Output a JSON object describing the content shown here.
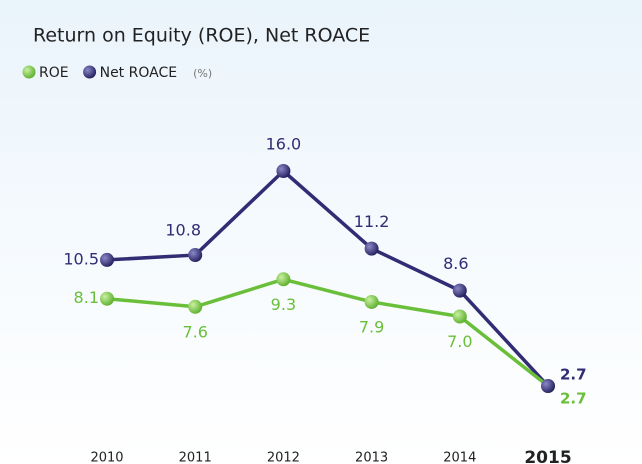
{
  "chart_data": {
    "type": "line",
    "title": "Return on Equity (ROE), Net ROACE",
    "unit": "(%)",
    "categories": [
      "2010",
      "2011",
      "2012",
      "2013",
      "2014",
      "2015"
    ],
    "series": [
      {
        "name": "ROE",
        "color": "#6abf3a",
        "values": [
          8.1,
          7.6,
          9.3,
          7.9,
          7.0,
          2.7
        ],
        "value_labels": [
          "8.1",
          "7.6",
          "9.3",
          "7.9",
          "7.0",
          "2.7"
        ]
      },
      {
        "name": "Net ROACE",
        "color": "#312c73",
        "values": [
          10.5,
          10.8,
          16.0,
          11.2,
          8.6,
          2.7
        ],
        "value_labels": [
          "10.5",
          "10.8",
          "16.0",
          "11.2",
          "8.6",
          "2.7"
        ]
      }
    ]
  }
}
